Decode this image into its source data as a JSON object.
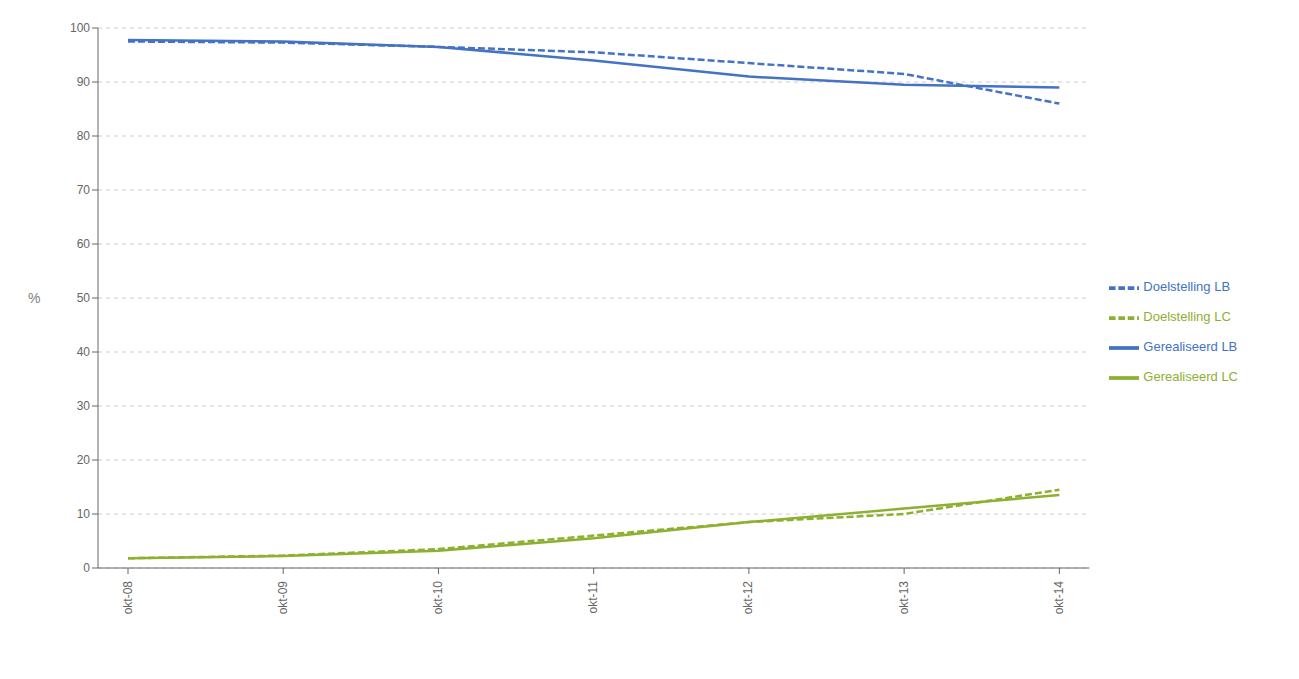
{
  "chart_data": {
    "type": "line",
    "ylabel": "%",
    "categories": [
      "okt-08",
      "okt-09",
      "okt-10",
      "okt-11",
      "okt-12",
      "okt-13",
      "okt-14"
    ],
    "series": [
      {
        "name": "Gerealiseerd LB",
        "color": "#4472C4",
        "line_style": "solid",
        "values": [
          97.8,
          97.5,
          96.5,
          94.0,
          91.0,
          89.5,
          89.0
        ]
      },
      {
        "name": "Doelstelling LB",
        "color": "#4472C4",
        "line_style": "dashed",
        "values": [
          97.5,
          97.3,
          96.5,
          95.5,
          93.5,
          91.5,
          86.0
        ]
      },
      {
        "name": "Gerealiseerd LC",
        "color": "#8DB030",
        "line_style": "solid",
        "values": [
          1.8,
          2.2,
          3.2,
          5.5,
          8.5,
          11.0,
          13.5
        ]
      },
      {
        "name": "Doelstelling LC",
        "color": "#8DB030",
        "line_style": "dashed",
        "values": [
          1.8,
          2.3,
          3.5,
          6.0,
          8.5,
          10.0,
          14.5
        ]
      }
    ],
    "ylim": [
      0,
      100
    ],
    "yticks": [
      0,
      10,
      20,
      30,
      40,
      50,
      60,
      70,
      80,
      90,
      100
    ],
    "grid": true,
    "legend": "right"
  }
}
